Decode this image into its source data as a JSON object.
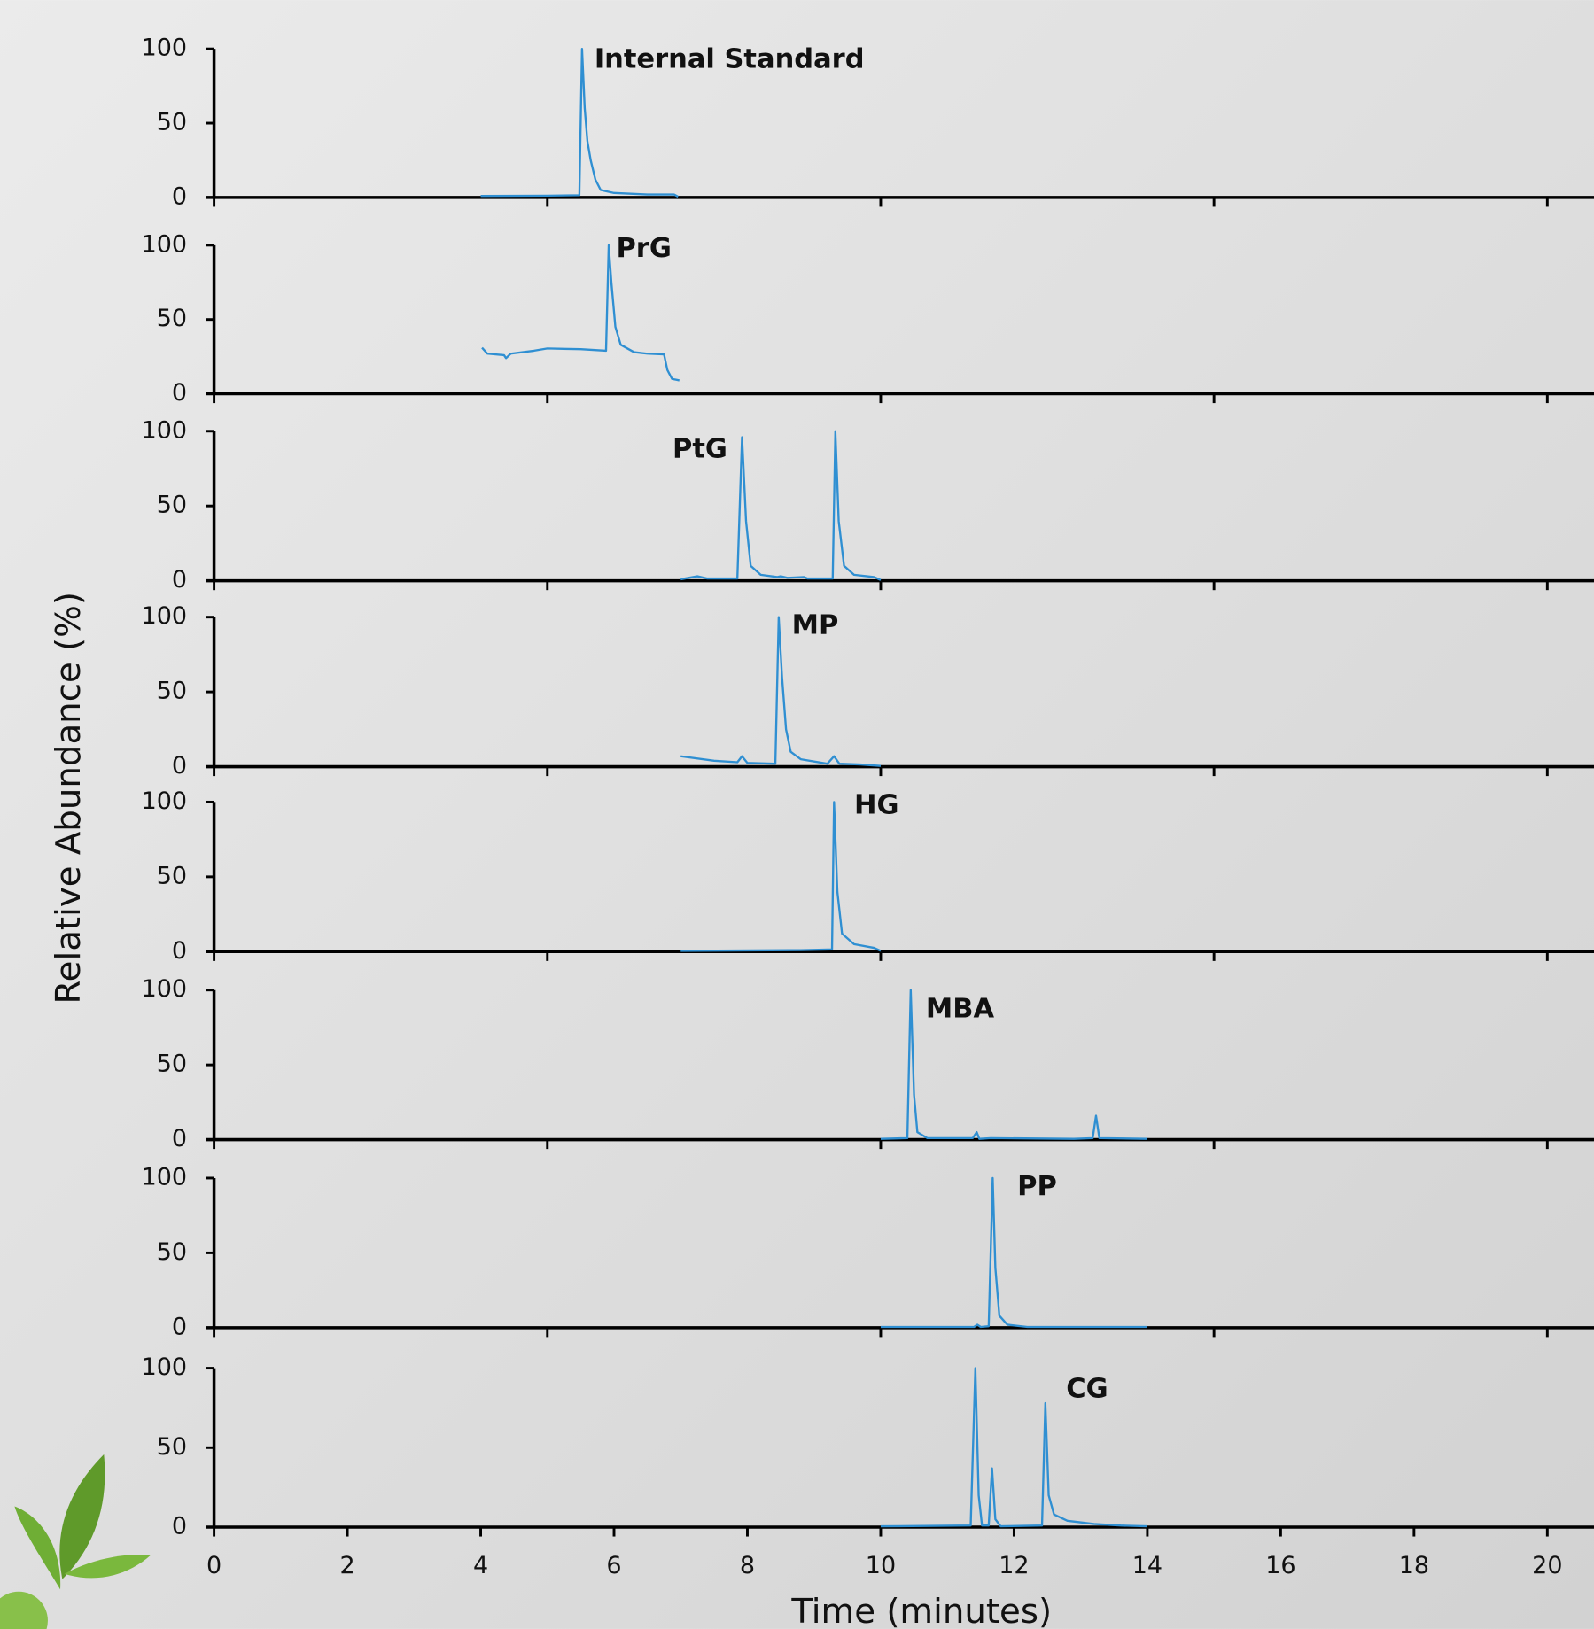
{
  "ylabel": "Relative Abundance (%)",
  "xlabel": "Time (minutes)",
  "chart_data": [
    {
      "type": "line",
      "annotation": "Internal Standard",
      "color": "#2f8fd2",
      "x": [
        4,
        5,
        5.48,
        5.52,
        5.56,
        5.6,
        5.65,
        5.72,
        5.8,
        6,
        6.5,
        6.9,
        6.96
      ],
      "values": [
        1,
        1.2,
        1.5,
        100,
        60,
        38,
        25,
        12,
        5,
        3,
        2,
        2,
        0.5
      ],
      "xlim": [
        0,
        20.7
      ],
      "xticks": [
        0,
        5,
        10,
        15,
        20
      ],
      "xtick_labels": false,
      "ylim": [
        0,
        100
      ],
      "yticks": [
        0,
        50,
        100
      ]
    },
    {
      "type": "line",
      "annotation": "PrG",
      "color": "#2f8fd2",
      "x": [
        4.02,
        4.1,
        4.35,
        4.38,
        4.45,
        4.8,
        5.0,
        5.5,
        5.88,
        5.92,
        5.96,
        6.02,
        6.1,
        6.3,
        6.5,
        6.75,
        6.8,
        6.87,
        6.98
      ],
      "values": [
        31,
        27,
        26,
        24,
        27,
        29,
        30.5,
        30,
        29,
        100,
        75,
        45,
        33,
        28,
        27,
        26.5,
        16,
        10,
        9
      ],
      "xlim": [
        0,
        20.7
      ],
      "xticks": [
        0,
        5,
        10,
        15,
        20
      ],
      "xtick_labels": false,
      "ylim": [
        0,
        100
      ],
      "yticks": [
        0,
        50,
        100
      ]
    },
    {
      "type": "line",
      "annotation": "PtG",
      "color": "#2f8fd2",
      "x": [
        7.0,
        7.25,
        7.4,
        7.85,
        7.92,
        7.98,
        8.05,
        8.2,
        8.45,
        8.5,
        8.6,
        8.85,
        8.9,
        9.28,
        9.32,
        9.37,
        9.45,
        9.6,
        9.9,
        10.0
      ],
      "values": [
        1,
        3,
        1.5,
        1.5,
        96,
        40,
        10,
        4,
        2.5,
        3,
        2,
        2.5,
        1.5,
        1.5,
        100,
        40,
        10,
        4,
        2.5,
        0.5
      ],
      "xlim": [
        0,
        20.7
      ],
      "xticks": [
        0,
        5,
        10,
        15,
        20
      ],
      "xtick_labels": false,
      "ylim": [
        0,
        100
      ],
      "yticks": [
        0,
        50,
        100
      ]
    },
    {
      "type": "line",
      "annotation": "MP",
      "color": "#2f8fd2",
      "x": [
        7.0,
        7.5,
        7.85,
        7.92,
        8.0,
        8.42,
        8.47,
        8.52,
        8.58,
        8.65,
        8.8,
        9.2,
        9.3,
        9.38,
        9.7,
        10.0
      ],
      "values": [
        7,
        4,
        3,
        7,
        2.5,
        2,
        100,
        60,
        25,
        10,
        5,
        2,
        7,
        2,
        1.5,
        0.5
      ],
      "xlim": [
        0,
        20.7
      ],
      "xticks": [
        0,
        5,
        10,
        15,
        20
      ],
      "xtick_labels": false,
      "ylim": [
        0,
        100
      ],
      "yticks": [
        0,
        50,
        100
      ]
    },
    {
      "type": "line",
      "annotation": "HG",
      "color": "#2f8fd2",
      "x": [
        7.0,
        8.8,
        9.27,
        9.3,
        9.35,
        9.42,
        9.6,
        9.9,
        10.0
      ],
      "values": [
        0.5,
        1,
        1.5,
        100,
        40,
        12,
        5,
        2.5,
        0.5
      ],
      "xlim": [
        0,
        20.7
      ],
      "xticks": [
        0,
        5,
        10,
        15,
        20
      ],
      "xtick_labels": false,
      "ylim": [
        0,
        100
      ],
      "yticks": [
        0,
        50,
        100
      ]
    },
    {
      "type": "line",
      "annotation": "MBA",
      "color": "#2f8fd2",
      "x": [
        10.0,
        10.4,
        10.45,
        10.5,
        10.55,
        10.7,
        11.38,
        11.44,
        11.48,
        11.65,
        12.9,
        13.18,
        13.23,
        13.28,
        14.0
      ],
      "values": [
        0.5,
        1,
        100,
        30,
        5,
        1,
        1,
        5,
        0.5,
        1,
        0.5,
        1,
        16,
        1,
        0.5
      ],
      "xlim": [
        0,
        20.7
      ],
      "xticks": [
        0,
        5,
        10,
        15,
        20
      ],
      "xtick_labels": false,
      "ylim": [
        0,
        100
      ],
      "yticks": [
        0,
        50,
        100
      ]
    },
    {
      "type": "line",
      "annotation": "PP",
      "color": "#2f8fd2",
      "x": [
        10.0,
        11.4,
        11.45,
        11.5,
        11.62,
        11.68,
        11.72,
        11.78,
        11.9,
        12.2,
        14.0
      ],
      "values": [
        0.5,
        0.5,
        2,
        0.5,
        1,
        100,
        40,
        8,
        2,
        0.5,
        0.5
      ],
      "xlim": [
        0,
        20.7
      ],
      "xticks": [
        0,
        5,
        10,
        15,
        20
      ],
      "xtick_labels": false,
      "ylim": [
        0,
        100
      ],
      "yticks": [
        0,
        50,
        100
      ]
    },
    {
      "type": "line",
      "annotation": "CG",
      "color": "#2f8fd2",
      "x": [
        10.0,
        11.35,
        11.42,
        11.47,
        11.52,
        11.62,
        11.67,
        11.72,
        11.8,
        12.42,
        12.47,
        12.52,
        12.6,
        12.8,
        13.2,
        13.6,
        14.0
      ],
      "values": [
        0.5,
        1,
        100,
        20,
        1,
        1,
        37,
        5,
        0.5,
        1,
        78,
        20,
        8,
        4,
        2,
        1,
        0.5
      ],
      "xlim": [
        0,
        20.7
      ],
      "xticks": [
        0,
        2,
        4,
        6,
        8,
        10,
        12,
        14,
        16,
        18,
        20
      ],
      "xtick_labels": true,
      "ylim": [
        0,
        100
      ],
      "yticks": [
        0,
        50,
        100
      ]
    }
  ]
}
